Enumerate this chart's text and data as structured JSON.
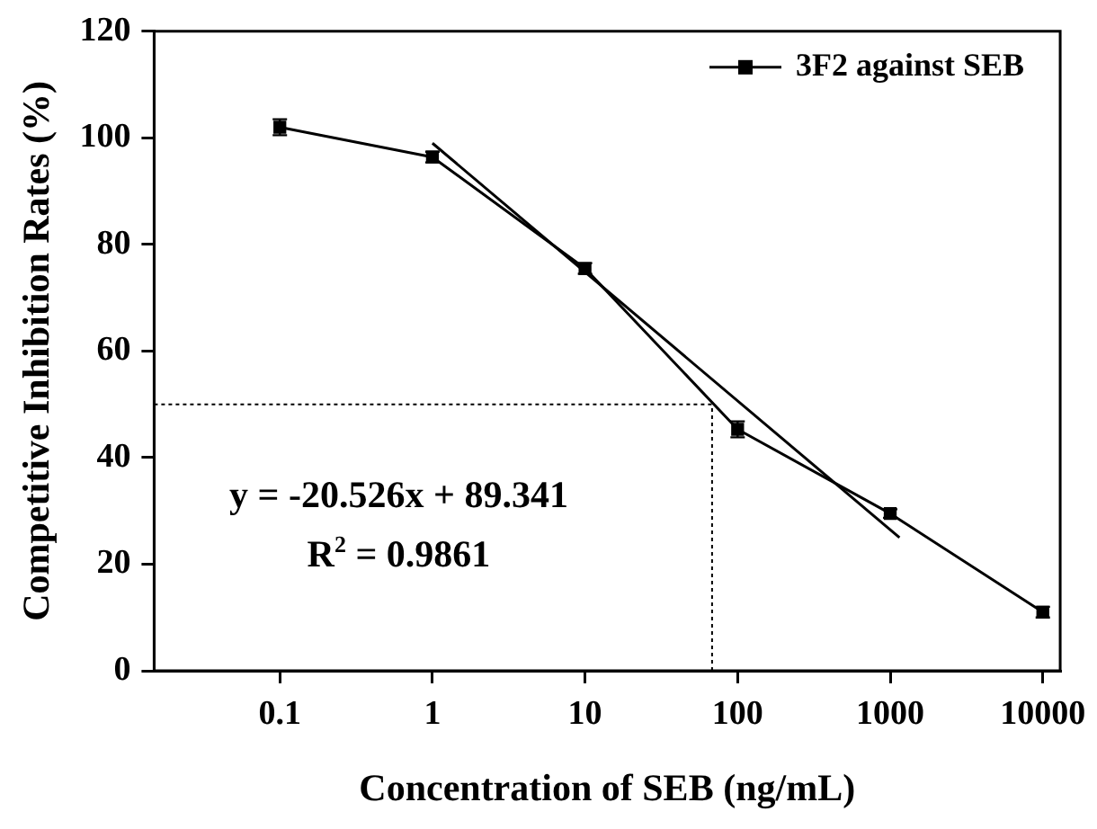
{
  "chart_data": {
    "type": "line",
    "xlabel": "Concentration of SEB (ng/mL)",
    "ylabel": "Competitive Inhibition Rates (%)",
    "log": "x",
    "xlim": [
      0.015,
      13000
    ],
    "xticks": [
      0.1,
      1,
      10,
      100,
      1000,
      10000
    ],
    "ylim": [
      0,
      120
    ],
    "yticks": [
      0,
      20,
      40,
      60,
      80,
      100,
      120
    ],
    "series": [
      {
        "name": "3F2 against SEB",
        "color": "#000000",
        "marker": "square",
        "x": [
          0.1,
          1,
          10,
          100,
          1000,
          10000
        ],
        "values": [
          102,
          96.4,
          75.5,
          45.3,
          29.5,
          11
        ],
        "errors": [
          1.5,
          1,
          1,
          1.5,
          0.8,
          1
        ]
      },
      {
        "color": "#000000",
        "marker": "none",
        "x": [
          1,
          1150
        ],
        "values": [
          99,
          25
        ]
      }
    ],
    "ref_lines": [
      {
        "axis": "y",
        "value": 50,
        "color": "#000000",
        "line_style": "dotted"
      },
      {
        "axis": "x",
        "value": 68,
        "color": "#000000",
        "line_style": "dotted"
      }
    ],
    "legend": "top right",
    "grid": false,
    "annotations": [
      "y = -20.526x + 89.341",
      "R$^{2}$ = 0.9861"
    ]
  }
}
